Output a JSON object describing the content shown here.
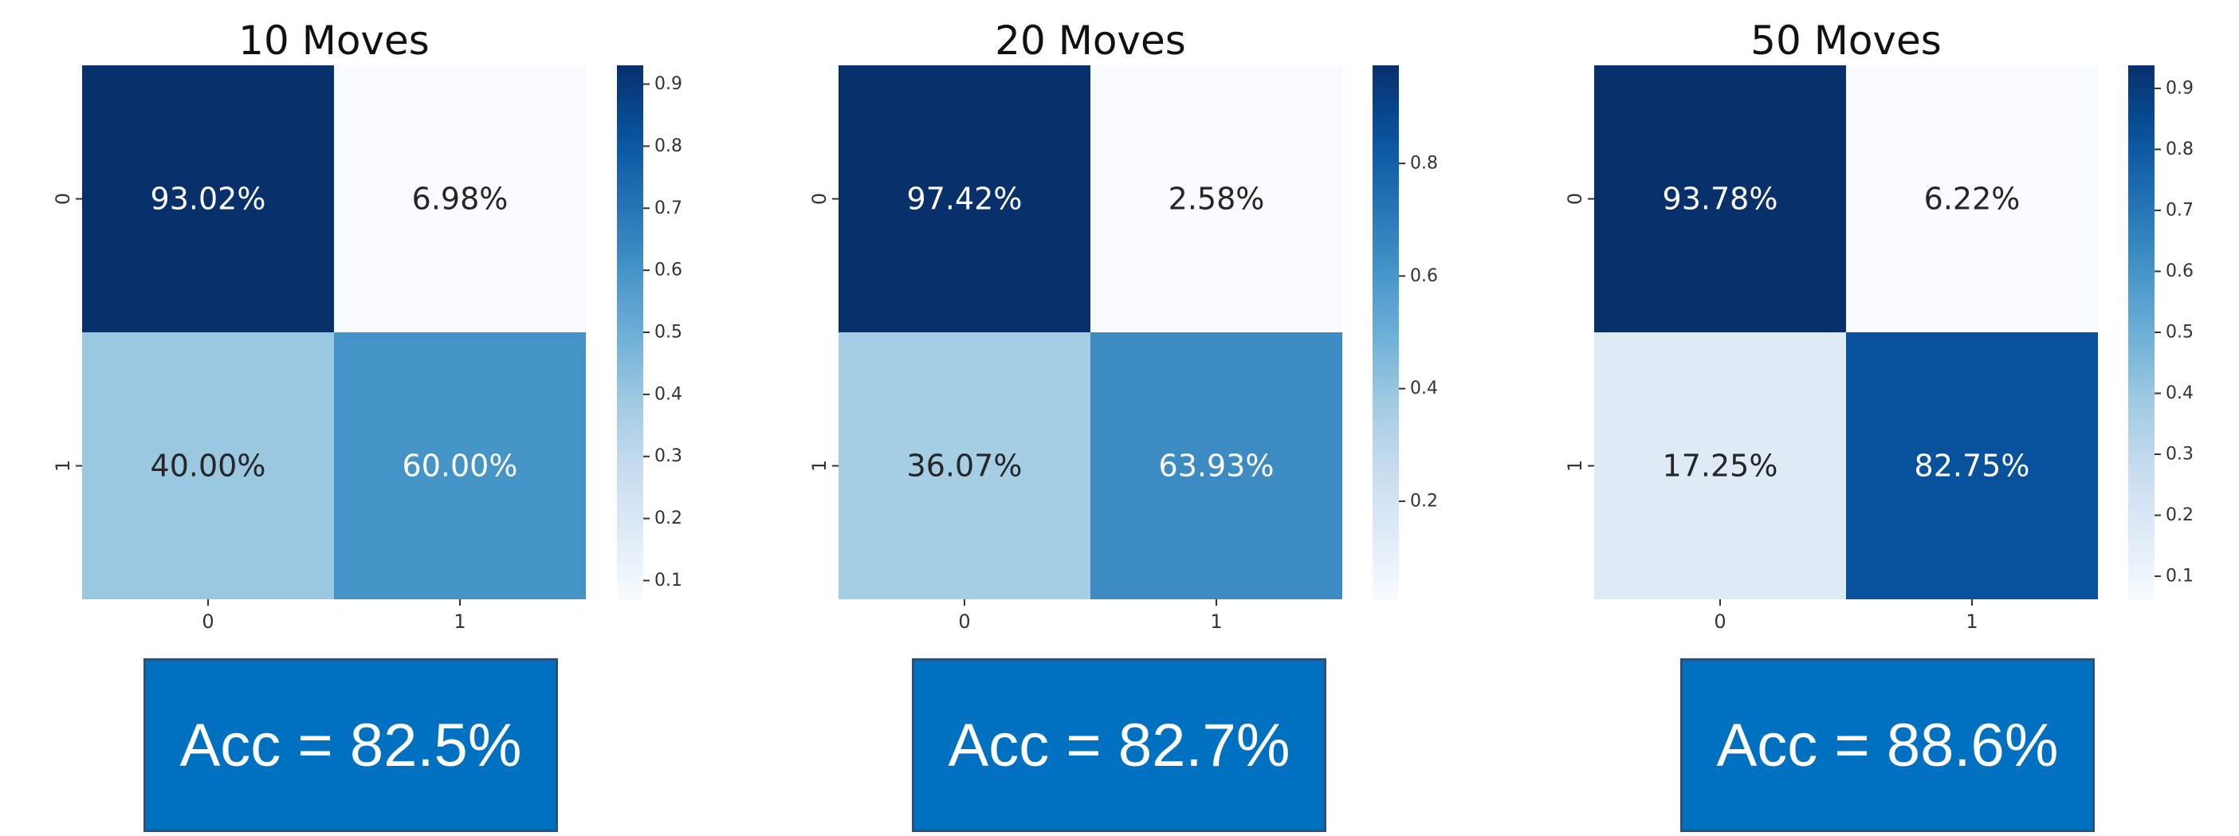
{
  "chart_data": [
    {
      "type": "heatmap",
      "title": "10 Moves",
      "x_tick_labels": [
        "0",
        "1"
      ],
      "y_tick_labels": [
        "0",
        "1"
      ],
      "values": [
        [
          0.9302,
          0.0698
        ],
        [
          0.4,
          0.6
        ]
      ],
      "cell_labels": [
        [
          "93.02%",
          "6.98%"
        ],
        [
          "40.00%",
          "60.00%"
        ]
      ],
      "colormap": "Blues",
      "colorbar": {
        "range": [
          0.0698,
          0.9302
        ],
        "ticks": [
          0.1,
          0.2,
          0.3,
          0.4,
          0.5,
          0.6,
          0.7,
          0.8,
          0.9
        ],
        "tick_labels": [
          "0.1",
          "0.2",
          "0.3",
          "0.4",
          "0.5",
          "0.6",
          "0.7",
          "0.8",
          "0.9"
        ]
      },
      "accuracy_label": "Acc = 82.5%"
    },
    {
      "type": "heatmap",
      "title": "20 Moves",
      "x_tick_labels": [
        "0",
        "1"
      ],
      "y_tick_labels": [
        "0",
        "1"
      ],
      "values": [
        [
          0.9742,
          0.0258
        ],
        [
          0.3607,
          0.6393
        ]
      ],
      "cell_labels": [
        [
          "97.42%",
          "2.58%"
        ],
        [
          "36.07%",
          "63.93%"
        ]
      ],
      "colormap": "Blues",
      "colorbar": {
        "range": [
          0.0258,
          0.9742
        ],
        "ticks": [
          0.2,
          0.4,
          0.6,
          0.8
        ],
        "tick_labels": [
          "0.2",
          "0.4",
          "0.6",
          "0.8"
        ]
      },
      "accuracy_label": "Acc = 82.7%"
    },
    {
      "type": "heatmap",
      "title": "50 Moves",
      "x_tick_labels": [
        "0",
        "1"
      ],
      "y_tick_labels": [
        "0",
        "1"
      ],
      "values": [
        [
          0.9378,
          0.0622
        ],
        [
          0.1725,
          0.8275
        ]
      ],
      "cell_labels": [
        [
          "93.78%",
          "6.22%"
        ],
        [
          "17.25%",
          "82.75%"
        ]
      ],
      "colormap": "Blues",
      "colorbar": {
        "range": [
          0.0622,
          0.9378
        ],
        "ticks": [
          0.1,
          0.2,
          0.3,
          0.4,
          0.5,
          0.6,
          0.7,
          0.8,
          0.9
        ],
        "tick_labels": [
          "0.1",
          "0.2",
          "0.3",
          "0.4",
          "0.5",
          "0.6",
          "0.7",
          "0.8",
          "0.9"
        ]
      },
      "accuracy_label": "Acc = 88.6%"
    }
  ],
  "colors": {
    "accuracy_box_fill": "#0070c0",
    "accuracy_box_border": "#2f4e7a",
    "accuracy_text": "#ffffff"
  }
}
